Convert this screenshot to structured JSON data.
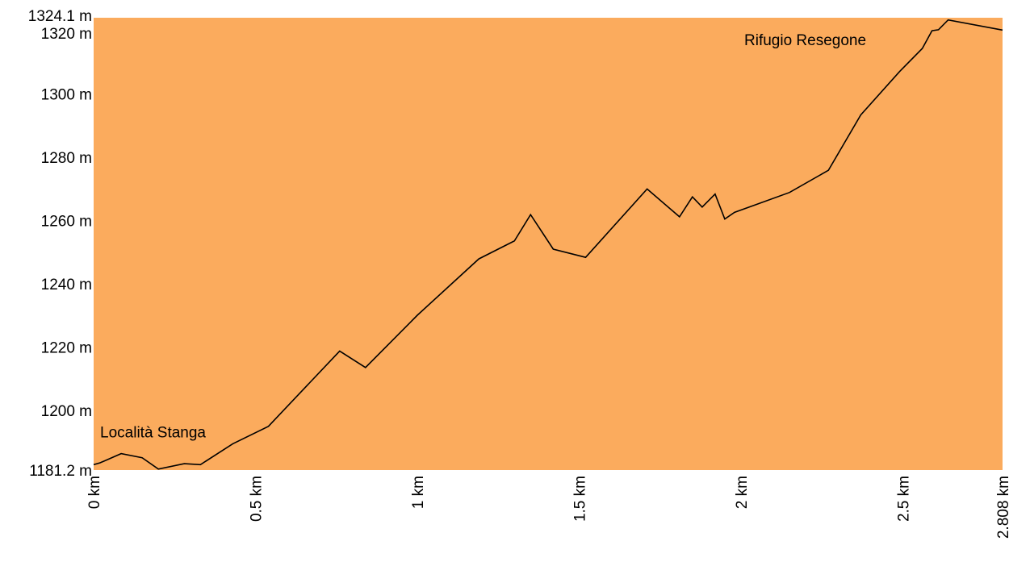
{
  "chart_data": {
    "type": "area",
    "title": "",
    "xlabel": "",
    "ylabel": "",
    "xlim": [
      0,
      2.808
    ],
    "ylim": [
      1181.2,
      1324.1
    ],
    "fill_color": "#fbab5d",
    "line_color": "#000000",
    "grid": false,
    "legend": "none",
    "x_ticks": [
      {
        "value": 0,
        "label": "0 km"
      },
      {
        "value": 0.5,
        "label": "0.5 km"
      },
      {
        "value": 1,
        "label": "1 km"
      },
      {
        "value": 1.5,
        "label": "1.5 km"
      },
      {
        "value": 2,
        "label": "2 km"
      },
      {
        "value": 2.5,
        "label": "2.5 km"
      },
      {
        "value": 2.808,
        "label": "2.808 km"
      }
    ],
    "y_ticks": [
      {
        "value": 1181.2,
        "label": "1181.2 m"
      },
      {
        "value": 1200,
        "label": "1200 m"
      },
      {
        "value": 1220,
        "label": "1220 m"
      },
      {
        "value": 1240,
        "label": "1240 m"
      },
      {
        "value": 1260,
        "label": "1260 m"
      },
      {
        "value": 1280,
        "label": "1280 m"
      },
      {
        "value": 1300,
        "label": "1300 m"
      },
      {
        "value": 1320,
        "label": "1320 m"
      },
      {
        "value": 1324.1,
        "label": "1324.1 m"
      }
    ],
    "annotations": [
      {
        "text": "Località Stanga",
        "x": 0.02,
        "y": 1191.5
      },
      {
        "text": "Rifugio Resegone",
        "x": 2.01,
        "y": 1315.5
      }
    ],
    "series": [
      {
        "x": [
          0,
          0.02,
          0.085,
          0.15,
          0.2,
          0.28,
          0.33,
          0.43,
          0.54,
          0.76,
          0.84,
          1.0,
          1.19,
          1.3,
          1.35,
          1.42,
          1.52,
          1.71,
          1.81,
          1.85,
          1.88,
          1.92,
          1.95,
          1.98,
          2.15,
          2.27,
          2.37,
          2.49,
          2.56,
          2.59,
          2.61,
          2.64,
          2.808
        ],
        "y": [
          1182.9,
          1183.5,
          1186.4,
          1185.1,
          1181.5,
          1183.2,
          1182.9,
          1189.5,
          1195.0,
          1218.8,
          1213.6,
          1230.1,
          1247.9,
          1253.6,
          1261.9,
          1251.0,
          1248.4,
          1270.0,
          1261.2,
          1267.5,
          1264.3,
          1268.4,
          1260.5,
          1262.6,
          1268.9,
          1275.9,
          1293.4,
          1307.1,
          1314.4,
          1320.0,
          1320.3,
          1323.4,
          1320.2
        ]
      }
    ]
  }
}
